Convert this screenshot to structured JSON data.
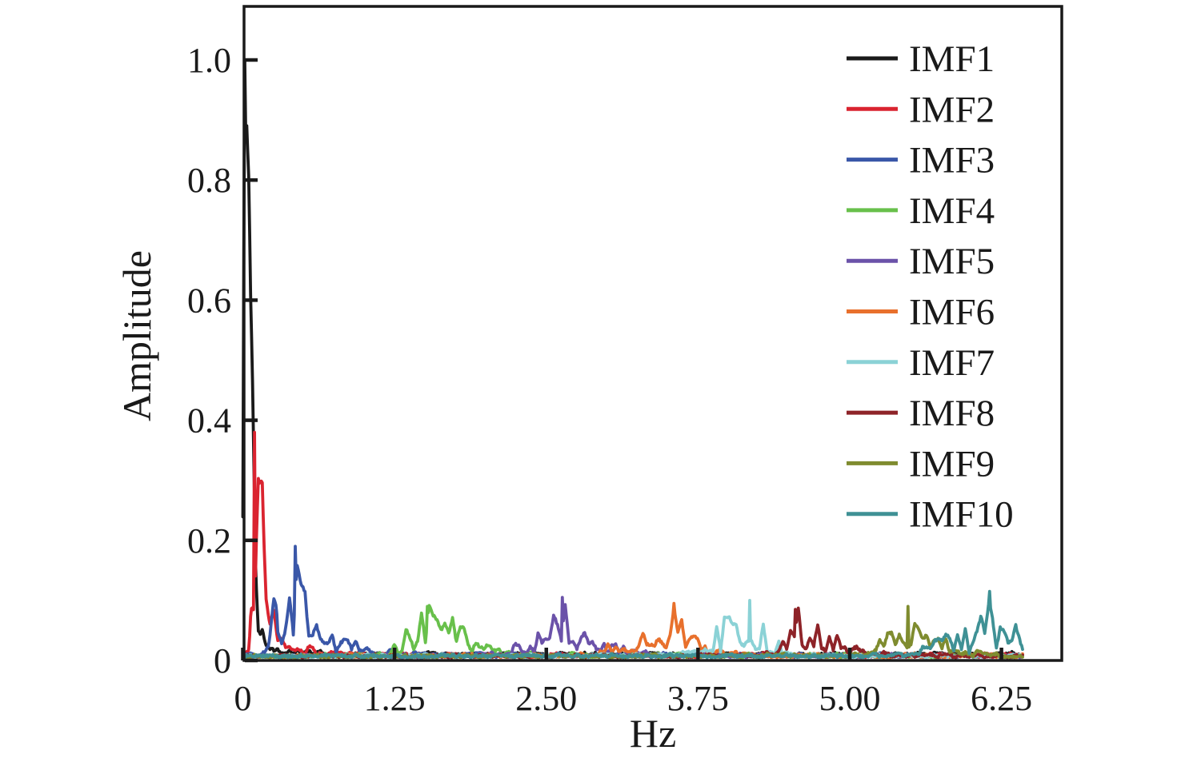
{
  "figure": {
    "background": "#ffffff",
    "axis_color": "#1a1a1a",
    "text_color": "#1a1a1a"
  },
  "chart_data": {
    "type": "line",
    "subtype": "frequency-spectrum",
    "title": "",
    "xlabel": "Hz",
    "ylabel": "Amplitude",
    "xlim": [
      0,
      6.74
    ],
    "ylim": [
      0,
      1.09
    ],
    "x_max_hz": 6.42,
    "grid": false,
    "legend_position": "upper right",
    "x_ticks": [
      0,
      1.25,
      2.5,
      3.75,
      5.0,
      6.25
    ],
    "x_tick_labels": [
      "0",
      "1.25",
      "2.50",
      "3.75",
      "5.00",
      "6.25"
    ],
    "y_ticks": [
      0,
      0.2,
      0.4,
      0.6,
      0.8,
      1.0
    ],
    "y_tick_labels": [
      "0",
      "0.2",
      "0.4",
      "0.6",
      "0.8",
      "1.0"
    ],
    "series": [
      {
        "name": "IMF1",
        "color": "#1a1a1a",
        "peak_hz": 0.02,
        "peak_amplitude": 1.0,
        "envelope": [
          [
            0,
            0.3
          ],
          [
            0.01,
            0.97
          ],
          [
            0.02,
            1.0
          ],
          [
            0.05,
            0.9
          ],
          [
            0.08,
            0.5
          ],
          [
            0.1,
            0.2
          ],
          [
            0.14,
            0.06
          ],
          [
            0.2,
            0.025
          ],
          [
            0.35,
            0.012
          ],
          [
            1.0,
            0.008
          ],
          [
            6.42,
            0.008
          ]
        ]
      },
      {
        "name": "IMF2",
        "color": "#da2430",
        "peak_hz": 0.1,
        "peak_amplitude": 0.38,
        "envelope": [
          [
            0,
            0.005
          ],
          [
            0.05,
            0.02
          ],
          [
            0.08,
            0.2
          ],
          [
            0.1,
            0.38
          ],
          [
            0.13,
            0.3
          ],
          [
            0.16,
            0.35
          ],
          [
            0.19,
            0.25
          ],
          [
            0.22,
            0.12
          ],
          [
            0.26,
            0.1
          ],
          [
            0.3,
            0.08
          ],
          [
            0.36,
            0.05
          ],
          [
            0.45,
            0.03
          ],
          [
            0.6,
            0.018
          ],
          [
            0.8,
            0.01
          ],
          [
            1.2,
            0.007
          ],
          [
            6.42,
            0.006
          ]
        ]
      },
      {
        "name": "IMF3",
        "color": "#3a57a8",
        "peak_hz": 0.43,
        "peak_amplitude": 0.19,
        "envelope": [
          [
            0,
            0.004
          ],
          [
            0.15,
            0.008
          ],
          [
            0.22,
            0.03
          ],
          [
            0.28,
            0.17
          ],
          [
            0.33,
            0.12
          ],
          [
            0.38,
            0.14
          ],
          [
            0.43,
            0.19
          ],
          [
            0.48,
            0.14
          ],
          [
            0.55,
            0.08
          ],
          [
            0.62,
            0.055
          ],
          [
            0.72,
            0.05
          ],
          [
            0.85,
            0.045
          ],
          [
            1.0,
            0.03
          ],
          [
            1.1,
            0.02
          ],
          [
            1.25,
            0.012
          ],
          [
            1.5,
            0.008
          ],
          [
            6.42,
            0.005
          ]
        ]
      },
      {
        "name": "IMF4",
        "color": "#68c04b",
        "peak_hz": 1.52,
        "peak_amplitude": 0.09,
        "envelope": [
          [
            0,
            0.004
          ],
          [
            1.0,
            0.006
          ],
          [
            1.15,
            0.012
          ],
          [
            1.3,
            0.03
          ],
          [
            1.42,
            0.075
          ],
          [
            1.52,
            0.09
          ],
          [
            1.62,
            0.075
          ],
          [
            1.72,
            0.08
          ],
          [
            1.82,
            0.055
          ],
          [
            1.92,
            0.035
          ],
          [
            2.05,
            0.02
          ],
          [
            2.2,
            0.012
          ],
          [
            2.5,
            0.008
          ],
          [
            6.42,
            0.005
          ]
        ]
      },
      {
        "name": "IMF5",
        "color": "#6b52a9",
        "peak_hz": 2.63,
        "peak_amplitude": 0.105,
        "envelope": [
          [
            0,
            0.004
          ],
          [
            1.9,
            0.006
          ],
          [
            2.1,
            0.012
          ],
          [
            2.3,
            0.03
          ],
          [
            2.45,
            0.05
          ],
          [
            2.55,
            0.08
          ],
          [
            2.63,
            0.105
          ],
          [
            2.72,
            0.085
          ],
          [
            2.82,
            0.065
          ],
          [
            2.95,
            0.05
          ],
          [
            3.05,
            0.03
          ],
          [
            3.2,
            0.015
          ],
          [
            3.4,
            0.008
          ],
          [
            6.42,
            0.005
          ]
        ]
      },
      {
        "name": "IMF6",
        "color": "#e8702c",
        "peak_hz": 3.55,
        "peak_amplitude": 0.095,
        "envelope": [
          [
            0,
            0.004
          ],
          [
            2.7,
            0.006
          ],
          [
            2.9,
            0.012
          ],
          [
            3.05,
            0.025
          ],
          [
            3.2,
            0.04
          ],
          [
            3.35,
            0.055
          ],
          [
            3.45,
            0.07
          ],
          [
            3.55,
            0.095
          ],
          [
            3.62,
            0.07
          ],
          [
            3.72,
            0.045
          ],
          [
            3.85,
            0.025
          ],
          [
            4.0,
            0.012
          ],
          [
            4.2,
            0.007
          ],
          [
            6.42,
            0.005
          ]
        ]
      },
      {
        "name": "IMF7",
        "color": "#8bd2d6",
        "peak_hz": 4.18,
        "peak_amplitude": 0.1,
        "envelope": [
          [
            0,
            0.004
          ],
          [
            3.5,
            0.006
          ],
          [
            3.7,
            0.012
          ],
          [
            3.85,
            0.035
          ],
          [
            3.95,
            0.07
          ],
          [
            4.02,
            0.09
          ],
          [
            4.1,
            0.07
          ],
          [
            4.18,
            0.095
          ],
          [
            4.28,
            0.06
          ],
          [
            4.38,
            0.03
          ],
          [
            4.5,
            0.015
          ],
          [
            4.7,
            0.008
          ],
          [
            6.42,
            0.005
          ]
        ]
      },
      {
        "name": "IMF8",
        "color": "#8e2328",
        "peak_hz": 4.55,
        "peak_amplitude": 0.085,
        "envelope": [
          [
            0,
            0.004
          ],
          [
            4.2,
            0.006
          ],
          [
            4.35,
            0.015
          ],
          [
            4.45,
            0.04
          ],
          [
            4.55,
            0.085
          ],
          [
            4.65,
            0.08
          ],
          [
            4.72,
            0.06
          ],
          [
            4.8,
            0.05
          ],
          [
            4.9,
            0.045
          ],
          [
            5.0,
            0.03
          ],
          [
            5.1,
            0.02
          ],
          [
            5.25,
            0.01
          ],
          [
            5.5,
            0.006
          ],
          [
            6.42,
            0.005
          ]
        ]
      },
      {
        "name": "IMF9",
        "color": "#7f8c2f",
        "peak_hz": 5.48,
        "peak_amplitude": 0.09,
        "envelope": [
          [
            0,
            0.004
          ],
          [
            4.9,
            0.006
          ],
          [
            5.1,
            0.015
          ],
          [
            5.25,
            0.04
          ],
          [
            5.38,
            0.06
          ],
          [
            5.48,
            0.09
          ],
          [
            5.58,
            0.06
          ],
          [
            5.68,
            0.065
          ],
          [
            5.78,
            0.04
          ],
          [
            5.9,
            0.02
          ],
          [
            6.05,
            0.012
          ],
          [
            6.2,
            0.008
          ],
          [
            6.42,
            0.006
          ]
        ]
      },
      {
        "name": "IMF10",
        "color": "#3f9195",
        "peak_hz": 6.15,
        "peak_amplitude": 0.115,
        "envelope": [
          [
            0,
            0.004
          ],
          [
            5.3,
            0.006
          ],
          [
            5.5,
            0.012
          ],
          [
            5.65,
            0.025
          ],
          [
            5.8,
            0.04
          ],
          [
            5.95,
            0.05
          ],
          [
            6.05,
            0.055
          ],
          [
            6.15,
            0.115
          ],
          [
            6.22,
            0.08
          ],
          [
            6.3,
            0.09
          ],
          [
            6.38,
            0.055
          ],
          [
            6.42,
            0.045
          ]
        ]
      }
    ]
  },
  "legend": {
    "items": [
      {
        "label": "IMF1",
        "color": "#1a1a1a"
      },
      {
        "label": "IMF2",
        "color": "#da2430"
      },
      {
        "label": "IMF3",
        "color": "#3a57a8"
      },
      {
        "label": "IMF4",
        "color": "#68c04b"
      },
      {
        "label": "IMF5",
        "color": "#6b52a9"
      },
      {
        "label": "IMF6",
        "color": "#e8702c"
      },
      {
        "label": "IMF7",
        "color": "#8bd2d6"
      },
      {
        "label": "IMF8",
        "color": "#8e2328"
      },
      {
        "label": "IMF9",
        "color": "#7f8c2f"
      },
      {
        "label": "IMF10",
        "color": "#3f9195"
      }
    ]
  }
}
